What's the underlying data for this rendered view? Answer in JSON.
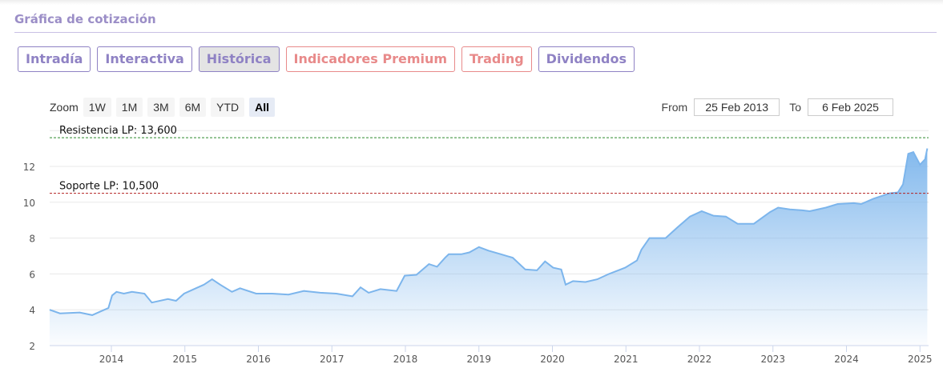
{
  "section_title": "Gráfica de cotización",
  "tabs": [
    {
      "label": "Intradía",
      "style": "purple"
    },
    {
      "label": "Interactiva",
      "style": "purple"
    },
    {
      "label": "Histórica",
      "style": "active"
    },
    {
      "label": "Indicadores Premium",
      "style": "red"
    },
    {
      "label": "Trading",
      "style": "red"
    },
    {
      "label": "Dividendos",
      "style": "purple"
    }
  ],
  "zoom": {
    "label": "Zoom",
    "buttons": [
      "1W",
      "1M",
      "3M",
      "6M",
      "YTD",
      "All"
    ],
    "selected": "All"
  },
  "range": {
    "from_label": "From",
    "from": "25 Feb 2013",
    "to_label": "To",
    "to": "6 Feb 2025"
  },
  "chart_data": {
    "type": "area",
    "xlim": [
      2013.16,
      2025.1
    ],
    "ylim": [
      1.5,
      14
    ],
    "x_ticks": [
      "2014",
      "2015",
      "2016",
      "2017",
      "2018",
      "2019",
      "2020",
      "2021",
      "2022",
      "2023",
      "2024",
      "2025"
    ],
    "y_ticks": [
      "2",
      "4",
      "6",
      "8",
      "10",
      "12"
    ],
    "lines": [
      {
        "label": "Resistencia LP: 13,600",
        "value": 13.6,
        "color": "#2e8b2e"
      },
      {
        "label": "Soporte LP: 10,500",
        "value": 10.5,
        "color": "#b22222"
      }
    ],
    "series_color": "#7cb5ec",
    "points": [
      [
        2013.16,
        4.0
      ],
      [
        2013.3,
        3.8
      ],
      [
        2013.57,
        3.85
      ],
      [
        2013.74,
        3.7
      ],
      [
        2013.85,
        3.9
      ],
      [
        2013.96,
        4.1
      ],
      [
        2014.01,
        4.8
      ],
      [
        2014.07,
        5.0
      ],
      [
        2014.17,
        4.9
      ],
      [
        2014.28,
        5.0
      ],
      [
        2014.45,
        4.9
      ],
      [
        2014.55,
        4.4
      ],
      [
        2014.77,
        4.6
      ],
      [
        2014.88,
        4.5
      ],
      [
        2014.99,
        4.9
      ],
      [
        2015.15,
        5.2
      ],
      [
        2015.26,
        5.4
      ],
      [
        2015.37,
        5.7
      ],
      [
        2015.48,
        5.4
      ],
      [
        2015.64,
        5.0
      ],
      [
        2015.75,
        5.2
      ],
      [
        2015.97,
        4.9
      ],
      [
        2016.19,
        4.9
      ],
      [
        2016.41,
        4.85
      ],
      [
        2016.62,
        5.05
      ],
      [
        2016.84,
        4.95
      ],
      [
        2017.06,
        4.9
      ],
      [
        2017.28,
        4.75
      ],
      [
        2017.39,
        5.25
      ],
      [
        2017.5,
        4.95
      ],
      [
        2017.66,
        5.15
      ],
      [
        2017.88,
        5.05
      ],
      [
        2017.99,
        5.9
      ],
      [
        2018.15,
        5.95
      ],
      [
        2018.32,
        6.55
      ],
      [
        2018.43,
        6.4
      ],
      [
        2018.54,
        6.9
      ],
      [
        2018.59,
        7.1
      ],
      [
        2018.76,
        7.1
      ],
      [
        2018.87,
        7.2
      ],
      [
        2019.0,
        7.5
      ],
      [
        2019.13,
        7.3
      ],
      [
        2019.3,
        7.1
      ],
      [
        2019.46,
        6.9
      ],
      [
        2019.63,
        6.25
      ],
      [
        2019.79,
        6.2
      ],
      [
        2019.9,
        6.7
      ],
      [
        2020.01,
        6.35
      ],
      [
        2020.12,
        6.25
      ],
      [
        2020.18,
        5.4
      ],
      [
        2020.28,
        5.6
      ],
      [
        2020.45,
        5.55
      ],
      [
        2020.61,
        5.7
      ],
      [
        2020.77,
        6.0
      ],
      [
        2020.99,
        6.35
      ],
      [
        2021.15,
        6.75
      ],
      [
        2021.21,
        7.35
      ],
      [
        2021.32,
        8.0
      ],
      [
        2021.54,
        8.0
      ],
      [
        2021.7,
        8.6
      ],
      [
        2021.87,
        9.2
      ],
      [
        2022.03,
        9.5
      ],
      [
        2022.19,
        9.25
      ],
      [
        2022.36,
        9.2
      ],
      [
        2022.52,
        8.8
      ],
      [
        2022.74,
        8.8
      ],
      [
        2022.96,
        9.45
      ],
      [
        2023.07,
        9.7
      ],
      [
        2023.23,
        9.6
      ],
      [
        2023.4,
        9.55
      ],
      [
        2023.5,
        9.5
      ],
      [
        2023.72,
        9.7
      ],
      [
        2023.88,
        9.9
      ],
      [
        2024.1,
        9.95
      ],
      [
        2024.2,
        9.9
      ],
      [
        2024.37,
        10.2
      ],
      [
        2024.59,
        10.5
      ],
      [
        2024.7,
        10.55
      ],
      [
        2024.77,
        11.0
      ],
      [
        2024.84,
        12.7
      ],
      [
        2024.91,
        12.8
      ],
      [
        2025.0,
        12.1
      ],
      [
        2025.07,
        12.4
      ],
      [
        2025.1,
        13.0
      ]
    ]
  }
}
